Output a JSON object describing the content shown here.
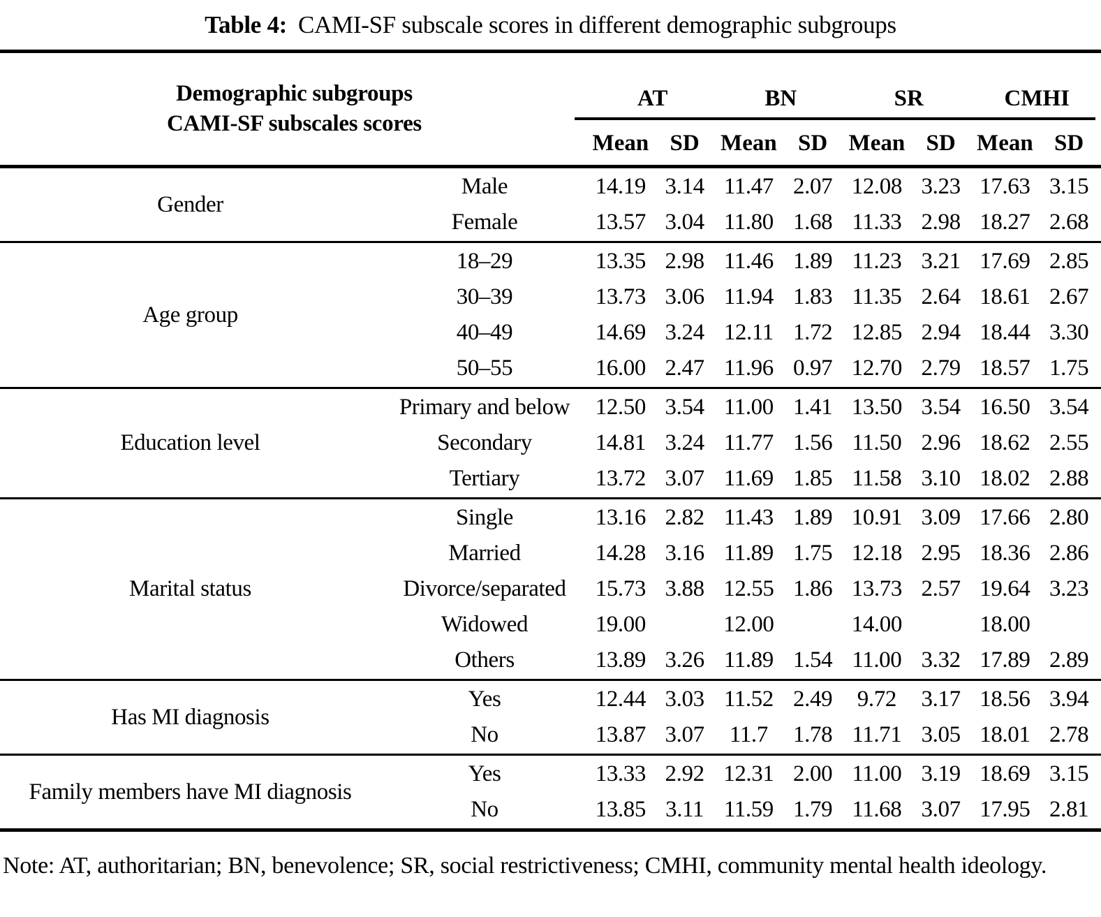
{
  "title": {
    "label": "Table 4:",
    "text": "CAMI-SF subscale scores in different demographic subgroups"
  },
  "header": {
    "left_line1": "Demographic subgroups",
    "left_line2": "CAMI-SF subscales scores",
    "subscales": [
      "AT",
      "BN",
      "SR",
      "CMHI"
    ],
    "stat_labels": [
      "Mean",
      "SD",
      "Mean",
      "SD",
      "Mean",
      "SD",
      "Mean",
      "SD"
    ]
  },
  "sections": [
    {
      "group": "Gender",
      "rows": [
        {
          "label": "Male",
          "values": [
            "14.19",
            "3.14",
            "11.47",
            "2.07",
            "12.08",
            "3.23",
            "17.63",
            "3.15"
          ]
        },
        {
          "label": "Female",
          "values": [
            "13.57",
            "3.04",
            "11.80",
            "1.68",
            "11.33",
            "2.98",
            "18.27",
            "2.68"
          ]
        }
      ]
    },
    {
      "group": "Age group",
      "rows": [
        {
          "label": "18–29",
          "values": [
            "13.35",
            "2.98",
            "11.46",
            "1.89",
            "11.23",
            "3.21",
            "17.69",
            "2.85"
          ]
        },
        {
          "label": "30–39",
          "values": [
            "13.73",
            "3.06",
            "11.94",
            "1.83",
            "11.35",
            "2.64",
            "18.61",
            "2.67"
          ]
        },
        {
          "label": "40–49",
          "values": [
            "14.69",
            "3.24",
            "12.11",
            "1.72",
            "12.85",
            "2.94",
            "18.44",
            "3.30"
          ]
        },
        {
          "label": "50–55",
          "values": [
            "16.00",
            "2.47",
            "11.96",
            "0.97",
            "12.70",
            "2.79",
            "18.57",
            "1.75"
          ]
        }
      ]
    },
    {
      "group": "Education level",
      "rows": [
        {
          "label": "Primary and below",
          "values": [
            "12.50",
            "3.54",
            "11.00",
            "1.41",
            "13.50",
            "3.54",
            "16.50",
            "3.54"
          ]
        },
        {
          "label": "Secondary",
          "values": [
            "14.81",
            "3.24",
            "11.77",
            "1.56",
            "11.50",
            "2.96",
            "18.62",
            "2.55"
          ]
        },
        {
          "label": "Tertiary",
          "values": [
            "13.72",
            "3.07",
            "11.69",
            "1.85",
            "11.58",
            "3.10",
            "18.02",
            "2.88"
          ]
        }
      ]
    },
    {
      "group": "Marital status",
      "rows": [
        {
          "label": "Single",
          "values": [
            "13.16",
            "2.82",
            "11.43",
            "1.89",
            "10.91",
            "3.09",
            "17.66",
            "2.80"
          ]
        },
        {
          "label": "Married",
          "values": [
            "14.28",
            "3.16",
            "11.89",
            "1.75",
            "12.18",
            "2.95",
            "18.36",
            "2.86"
          ]
        },
        {
          "label": "Divorce/separated",
          "values": [
            "15.73",
            "3.88",
            "12.55",
            "1.86",
            "13.73",
            "2.57",
            "19.64",
            "3.23"
          ]
        },
        {
          "label": "Widowed",
          "values": [
            "19.00",
            "",
            "12.00",
            "",
            "14.00",
            "",
            "18.00",
            ""
          ]
        },
        {
          "label": "Others",
          "values": [
            "13.89",
            "3.26",
            "11.89",
            "1.54",
            "11.00",
            "3.32",
            "17.89",
            "2.89"
          ]
        }
      ]
    },
    {
      "group": "Has MI diagnosis",
      "rows": [
        {
          "label": "Yes",
          "values": [
            "12.44",
            "3.03",
            "11.52",
            "2.49",
            "9.72",
            "3.17",
            "18.56",
            "3.94"
          ]
        },
        {
          "label": "No",
          "values": [
            "13.87",
            "3.07",
            "11.7",
            "1.78",
            "11.71",
            "3.05",
            "18.01",
            "2.78"
          ]
        }
      ]
    },
    {
      "group": "Family members have MI diagnosis",
      "rows": [
        {
          "label": "Yes",
          "values": [
            "13.33",
            "2.92",
            "12.31",
            "2.00",
            "11.00",
            "3.19",
            "18.69",
            "3.15"
          ]
        },
        {
          "label": "No",
          "values": [
            "13.85",
            "3.11",
            "11.59",
            "1.79",
            "11.68",
            "3.07",
            "17.95",
            "2.81"
          ]
        }
      ]
    }
  ],
  "note": "Note: AT, authoritarian; BN, benevolence; SR, social restrictiveness; CMHI, community mental health ideology."
}
